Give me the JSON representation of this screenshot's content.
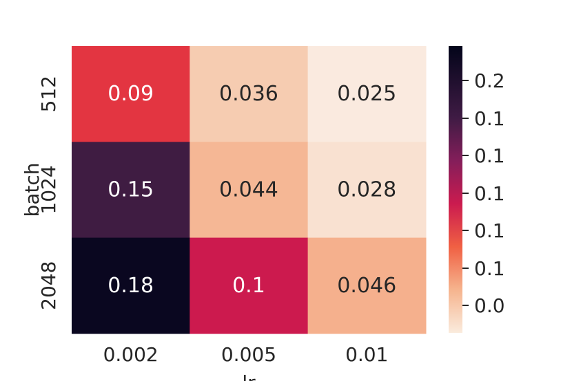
{
  "chart_data": {
    "type": "heatmap",
    "xlabel": "lr",
    "ylabel": "batch",
    "x_categories": [
      "0.002",
      "0.005",
      "0.01"
    ],
    "y_categories": [
      "512",
      "1024",
      "2048"
    ],
    "values": [
      [
        0.09,
        0.036,
        0.025
      ],
      [
        0.15,
        0.044,
        0.028
      ],
      [
        0.18,
        0.1,
        0.046
      ]
    ],
    "cell_labels": [
      [
        "0.09",
        "0.036",
        "0.025"
      ],
      [
        "0.15",
        "0.044",
        "0.028"
      ],
      [
        "0.18",
        "0.1",
        "0.046"
      ]
    ],
    "colorbar": {
      "tick_labels": [
        "0.2",
        "0.1",
        "0.1",
        "0.1",
        "0.1",
        "0.1",
        "0.0"
      ],
      "range": [
        0.0,
        0.28
      ]
    },
    "colors": {
      "0.09": "#e33541",
      "0.036": "#f6ccb1",
      "0.025": "#faeadf",
      "0.15": "#3f1c42",
      "0.044": "#f5b795",
      "0.028": "#f9e1d1",
      "0.18": "#0a0720",
      "0.1": "#cc1a4e",
      "0.046": "#f5b08d"
    }
  }
}
